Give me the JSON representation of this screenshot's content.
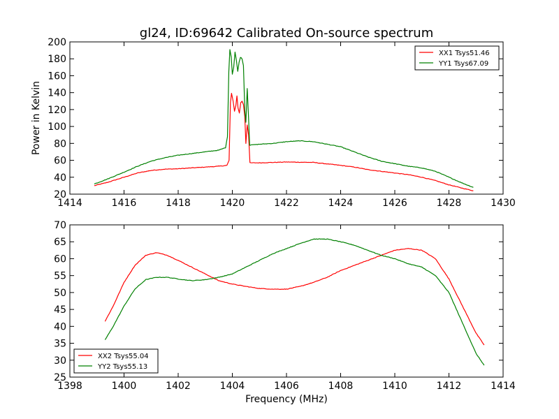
{
  "figure": {
    "title": "gl24, ID:69642 Calibrated On-source spectrum",
    "xlabel": "Frequency (MHz)"
  },
  "chart_data": [
    {
      "type": "line",
      "title": "gl24, ID:69642 Calibrated On-source spectrum",
      "ylabel": "Power in Kelvin",
      "xlabel": "",
      "xlim": [
        1414,
        1430
      ],
      "ylim": [
        20,
        200
      ],
      "xticks": [
        1414,
        1416,
        1418,
        1420,
        1422,
        1424,
        1426,
        1428,
        1430
      ],
      "yticks": [
        20,
        40,
        60,
        80,
        100,
        120,
        140,
        160,
        180,
        200
      ],
      "grid": false,
      "legend_position": "top-right",
      "series": [
        {
          "name": "XX1 Tsys51.46",
          "color": "#ff0000",
          "points": [
            [
              1414.9,
              30
            ],
            [
              1415.4,
              34
            ],
            [
              1416.0,
              40
            ],
            [
              1416.5,
              45
            ],
            [
              1417.0,
              48
            ],
            [
              1417.5,
              49.5
            ],
            [
              1418.0,
              50
            ],
            [
              1418.5,
              51
            ],
            [
              1419.0,
              52
            ],
            [
              1419.5,
              53
            ],
            [
              1419.8,
              54
            ],
            [
              1419.88,
              60
            ],
            [
              1419.93,
              128
            ],
            [
              1419.97,
              139
            ],
            [
              1420.03,
              130
            ],
            [
              1420.08,
              118
            ],
            [
              1420.13,
              125
            ],
            [
              1420.17,
              136
            ],
            [
              1420.21,
              122
            ],
            [
              1420.26,
              116
            ],
            [
              1420.31,
              128
            ],
            [
              1420.36,
              130
            ],
            [
              1420.41,
              126
            ],
            [
              1420.46,
              112
            ],
            [
              1420.5,
              80
            ],
            [
              1420.55,
              102
            ],
            [
              1420.6,
              90
            ],
            [
              1420.65,
              57
            ],
            [
              1421.0,
              57
            ],
            [
              1422.0,
              58
            ],
            [
              1423.0,
              57.5
            ],
            [
              1424.0,
              54
            ],
            [
              1424.5,
              52
            ],
            [
              1425.0,
              49
            ],
            [
              1425.5,
              47
            ],
            [
              1426.0,
              45
            ],
            [
              1426.5,
              43
            ],
            [
              1427.0,
              40
            ],
            [
              1427.5,
              36
            ],
            [
              1428.0,
              31
            ],
            [
              1428.5,
              27
            ],
            [
              1428.9,
              24
            ]
          ]
        },
        {
          "name": "YY1 Tsys67.09",
          "color": "#008000",
          "points": [
            [
              1414.9,
              32
            ],
            [
              1415.4,
              38
            ],
            [
              1416.0,
              46
            ],
            [
              1416.5,
              53
            ],
            [
              1417.0,
              59
            ],
            [
              1417.5,
              63
            ],
            [
              1418.0,
              66
            ],
            [
              1418.5,
              68
            ],
            [
              1419.0,
              70
            ],
            [
              1419.5,
              72
            ],
            [
              1419.75,
              75
            ],
            [
              1419.82,
              88
            ],
            [
              1419.87,
              165
            ],
            [
              1419.91,
              191
            ],
            [
              1419.96,
              182
            ],
            [
              1420.0,
              162
            ],
            [
              1420.05,
              170
            ],
            [
              1420.1,
              188
            ],
            [
              1420.15,
              178
            ],
            [
              1420.2,
              165
            ],
            [
              1420.25,
              176
            ],
            [
              1420.3,
              182
            ],
            [
              1420.36,
              180
            ],
            [
              1420.41,
              172
            ],
            [
              1420.46,
              120
            ],
            [
              1420.5,
              105
            ],
            [
              1420.55,
              145
            ],
            [
              1420.6,
              110
            ],
            [
              1420.64,
              78
            ],
            [
              1421.0,
              79
            ],
            [
              1421.5,
              80
            ],
            [
              1422.0,
              82
            ],
            [
              1422.5,
              83
            ],
            [
              1423.0,
              82
            ],
            [
              1423.5,
              79
            ],
            [
              1424.0,
              76
            ],
            [
              1424.5,
              70
            ],
            [
              1425.0,
              64
            ],
            [
              1425.5,
              59
            ],
            [
              1426.0,
              56
            ],
            [
              1426.5,
              53
            ],
            [
              1427.0,
              51
            ],
            [
              1427.5,
              47
            ],
            [
              1428.0,
              40
            ],
            [
              1428.5,
              33
            ],
            [
              1428.9,
              28
            ]
          ]
        }
      ]
    },
    {
      "type": "line",
      "title": "",
      "ylabel": "",
      "xlabel": "Frequency (MHz)",
      "xlim": [
        1398,
        1414
      ],
      "ylim": [
        25,
        70
      ],
      "xticks": [
        1398,
        1400,
        1402,
        1404,
        1406,
        1408,
        1410,
        1412,
        1414
      ],
      "yticks": [
        25,
        30,
        35,
        40,
        45,
        50,
        55,
        60,
        65,
        70
      ],
      "grid": false,
      "legend_position": "bottom-left",
      "series": [
        {
          "name": "XX2 Tsys55.04",
          "color": "#ff0000",
          "points": [
            [
              1399.3,
              41.5
            ],
            [
              1399.6,
              46
            ],
            [
              1400.0,
              53
            ],
            [
              1400.4,
              58
            ],
            [
              1400.8,
              61
            ],
            [
              1401.2,
              61.8
            ],
            [
              1401.6,
              61
            ],
            [
              1402.0,
              59.5
            ],
            [
              1402.5,
              57.5
            ],
            [
              1403.0,
              55.5
            ],
            [
              1403.5,
              53.5
            ],
            [
              1404.0,
              52.5
            ],
            [
              1404.5,
              51.8
            ],
            [
              1405.0,
              51.2
            ],
            [
              1405.5,
              51
            ],
            [
              1406.0,
              51
            ],
            [
              1406.5,
              51.8
            ],
            [
              1407.0,
              53
            ],
            [
              1407.5,
              54.5
            ],
            [
              1408.0,
              56.5
            ],
            [
              1408.5,
              58
            ],
            [
              1409.0,
              59.5
            ],
            [
              1409.5,
              61
            ],
            [
              1410.0,
              62.5
            ],
            [
              1410.5,
              63
            ],
            [
              1411.0,
              62.5
            ],
            [
              1411.5,
              60
            ],
            [
              1412.0,
              54
            ],
            [
              1412.5,
              46
            ],
            [
              1413.0,
              38
            ],
            [
              1413.3,
              34.5
            ]
          ]
        },
        {
          "name": "YY2 Tsys55.13",
          "color": "#008000",
          "points": [
            [
              1399.3,
              36
            ],
            [
              1399.6,
              40
            ],
            [
              1400.0,
              46
            ],
            [
              1400.4,
              51
            ],
            [
              1400.8,
              53.8
            ],
            [
              1401.2,
              54.5
            ],
            [
              1401.6,
              54.5
            ],
            [
              1402.0,
              54
            ],
            [
              1402.5,
              53.5
            ],
            [
              1403.0,
              53.8
            ],
            [
              1403.5,
              54.5
            ],
            [
              1404.0,
              55.5
            ],
            [
              1404.5,
              57.5
            ],
            [
              1405.0,
              59.5
            ],
            [
              1405.5,
              61.5
            ],
            [
              1406.0,
              63
            ],
            [
              1406.5,
              64.5
            ],
            [
              1407.0,
              65.8
            ],
            [
              1407.5,
              65.8
            ],
            [
              1408.0,
              65
            ],
            [
              1408.5,
              64
            ],
            [
              1409.0,
              62.5
            ],
            [
              1409.5,
              61
            ],
            [
              1410.0,
              60
            ],
            [
              1410.5,
              58.5
            ],
            [
              1411.0,
              57.5
            ],
            [
              1411.5,
              55
            ],
            [
              1412.0,
              50
            ],
            [
              1412.5,
              41
            ],
            [
              1413.0,
              32
            ],
            [
              1413.3,
              28.5
            ]
          ]
        }
      ]
    }
  ]
}
